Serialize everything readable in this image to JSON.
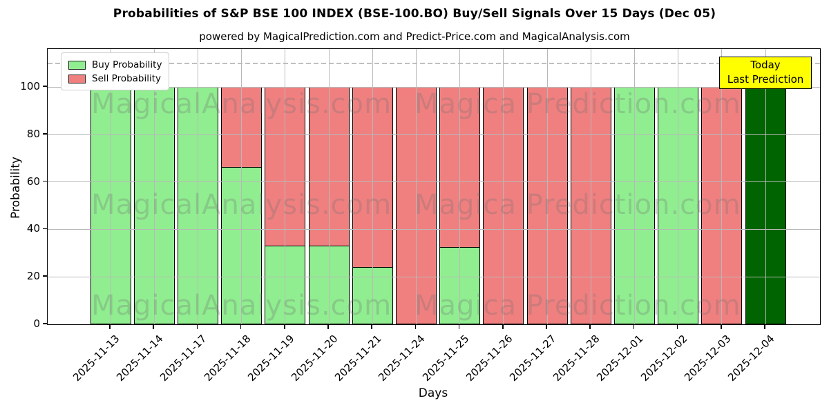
{
  "title": "Probabilities of S&P BSE 100 INDEX (BSE-100.BO) Buy/Sell Signals Over 15 Days (Dec 05)",
  "subtitle": "powered by MagicalPrediction.com and Predict-Price.com and MagicalAnalysis.com",
  "legend": {
    "items": [
      {
        "label": "Buy Probability",
        "color": "#90EE90"
      },
      {
        "label": "Sell Probability",
        "color": "#F08080"
      }
    ]
  },
  "annotation": {
    "line1": "Today",
    "line2": "Last Prediction",
    "bg": "#FFFF00"
  },
  "watermarks": {
    "left": "MagicalAnalysis.com",
    "right": "Magica Prediction.com"
  },
  "axes": {
    "xlabel": "Days",
    "ylabel": "Probability",
    "yticks": [
      0,
      20,
      40,
      60,
      80,
      100
    ],
    "ylim": [
      0,
      116
    ],
    "dashed_line_y": 110,
    "grid": true
  },
  "chart_data": {
    "type": "bar",
    "stacked": true,
    "title": "Probabilities of S&P BSE 100 INDEX (BSE-100.BO) Buy/Sell Signals Over 15 Days (Dec 05)",
    "xlabel": "Days",
    "ylabel": "Probability",
    "ylim": [
      0,
      116
    ],
    "legend_position": "upper left",
    "categories": [
      "2025-11-13",
      "2025-11-14",
      "2025-11-17",
      "2025-11-18",
      "2025-11-19",
      "2025-11-20",
      "2025-11-21",
      "2025-11-24",
      "2025-11-25",
      "2025-11-26",
      "2025-11-27",
      "2025-11-28",
      "2025-12-01",
      "2025-12-02",
      "2025-12-03",
      "2025-12-04"
    ],
    "series": [
      {
        "name": "Buy Probability",
        "color": "#90EE90",
        "values": [
          100,
          100,
          100,
          66.7,
          33.3,
          33.3,
          24.5,
          0,
          32.8,
          0,
          0,
          0,
          100,
          100,
          0,
          100
        ]
      },
      {
        "name": "Sell Probability",
        "color": "#F08080",
        "values": [
          0,
          0,
          0,
          33.3,
          66.7,
          66.7,
          75.5,
          100,
          67.2,
          100,
          100,
          100,
          0,
          0,
          100,
          0
        ]
      }
    ],
    "today_bar": {
      "category": "2025-12-04",
      "index": 15,
      "color": "#006400",
      "label": "Today Last Prediction"
    }
  },
  "colors": {
    "background": "#ffffff",
    "bar_edge": "#000000",
    "grid": "#b8b8b8",
    "dashed_line": "#777777",
    "watermark": "rgba(110,110,110,0.28)"
  }
}
